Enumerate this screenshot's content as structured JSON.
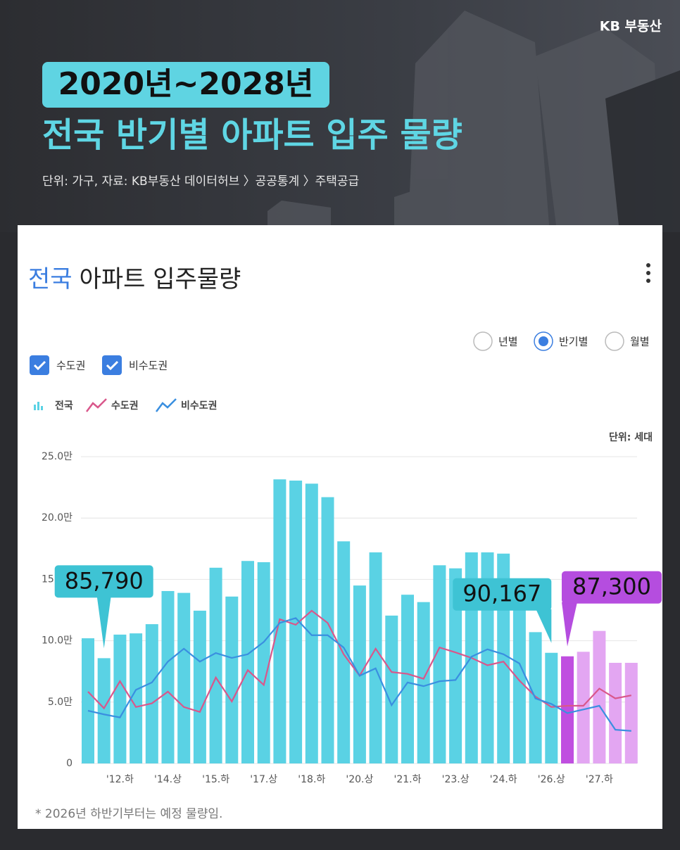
{
  "header": {
    "brand": "KB 부동산",
    "period": "2020년~2028년",
    "title": "전국 반기별 아파트 입주 물량",
    "source": "단위: 가구, 자료: KB부동산 데이터허브 〉공공통계 〉주택공급"
  },
  "card": {
    "title_highlight": "전국",
    "title": "아파트 입주물량",
    "radio": [
      "년별",
      "반기별",
      "월별"
    ],
    "radio_selected": 1,
    "checkboxes": [
      "수도권",
      "비수도권"
    ],
    "unit": "단위: 세대",
    "footnote": "* 2026년 하반기부터는 예정 물량임."
  },
  "chart_data": {
    "type": "bar",
    "categories": [
      null,
      null,
      "'12.하",
      null,
      null,
      "'14.상",
      null,
      null,
      "'15.하",
      null,
      null,
      "'17.상",
      null,
      null,
      "'18.하",
      null,
      null,
      "'20.상",
      null,
      null,
      "'21.하",
      null,
      null,
      "'23.상",
      null,
      null,
      "'24.하",
      null,
      null,
      "'26.상",
      null,
      null,
      "'27.하",
      null,
      null
    ],
    "ylim": [
      0,
      25
    ],
    "yticks": [
      0,
      {
        "value": 5,
        "label": "5.0만"
      },
      {
        "value": 10,
        "label": "10.0만"
      },
      {
        "value": 15,
        "label": "15.0만"
      },
      {
        "value": 20,
        "label": "20.0만"
      },
      {
        "value": 25,
        "label": "25.0만"
      }
    ],
    "grid": true,
    "series": [
      {
        "name": "전국",
        "type": "bar",
        "color": "#5ad2e4",
        "colors": [
          "#5ad2e4",
          "#5ad2e4",
          "#5ad2e4",
          "#5ad2e4",
          "#5ad2e4",
          "#5ad2e4",
          "#5ad2e4",
          "#5ad2e4",
          "#5ad2e4",
          "#5ad2e4",
          "#5ad2e4",
          "#5ad2e4",
          "#5ad2e4",
          "#5ad2e4",
          "#5ad2e4",
          "#5ad2e4",
          "#5ad2e4",
          "#5ad2e4",
          "#5ad2e4",
          "#5ad2e4",
          "#5ad2e4",
          "#5ad2e4",
          "#5ad2e4",
          "#5ad2e4",
          "#5ad2e4",
          "#5ad2e4",
          "#5ad2e4",
          "#5ad2e4",
          "#5ad2e4",
          "#5ad2e4",
          "#c04fe0",
          "#e3a6f2",
          "#e3a6f2",
          "#e3a6f2",
          "#e3a6f2"
        ],
        "values": [
          10.2,
          8.579,
          10.5,
          10.6,
          11.35,
          14.05,
          13.9,
          12.45,
          15.95,
          13.6,
          16.5,
          16.4,
          23.15,
          23.05,
          22.8,
          21.7,
          18.1,
          14.5,
          17.2,
          12.05,
          13.75,
          13.15,
          16.15,
          15.9,
          17.2,
          17.2,
          17.1,
          14.7,
          10.7,
          9.0167,
          8.73,
          9.1,
          10.8,
          8.2,
          8.2
        ],
        "value_labels": [
          null,
          "85,790",
          null,
          null,
          null,
          null,
          null,
          null,
          null,
          null,
          null,
          null,
          null,
          null,
          null,
          null,
          null,
          null,
          null,
          null,
          null,
          null,
          null,
          null,
          null,
          null,
          null,
          null,
          null,
          "90,167",
          "87,300",
          null,
          null,
          null,
          null
        ]
      },
      {
        "name": "수도권",
        "type": "line",
        "color": "#d9578b",
        "values": [
          5.85,
          4.5,
          6.7,
          4.6,
          4.9,
          5.85,
          4.6,
          4.2,
          7.0,
          5.05,
          7.6,
          6.4,
          11.75,
          11.3,
          12.45,
          11.45,
          8.9,
          7.15,
          9.35,
          7.45,
          7.3,
          6.9,
          9.45,
          9.05,
          8.6,
          8.0,
          8.3,
          6.75,
          5.45,
          4.6,
          4.7,
          4.7,
          6.1,
          5.3,
          5.55
        ]
      },
      {
        "name": "비수도권",
        "type": "line",
        "color": "#3a8fe0",
        "values": [
          4.3,
          4.0,
          3.75,
          6.0,
          6.6,
          8.3,
          9.35,
          8.3,
          9.0,
          8.6,
          8.9,
          9.9,
          11.45,
          11.85,
          10.45,
          10.45,
          9.45,
          7.15,
          7.75,
          4.75,
          6.6,
          6.3,
          6.7,
          6.8,
          8.7,
          9.3,
          8.9,
          8.15,
          5.3,
          4.85,
          4.1,
          4.4,
          4.7,
          2.75,
          2.65
        ]
      }
    ]
  }
}
